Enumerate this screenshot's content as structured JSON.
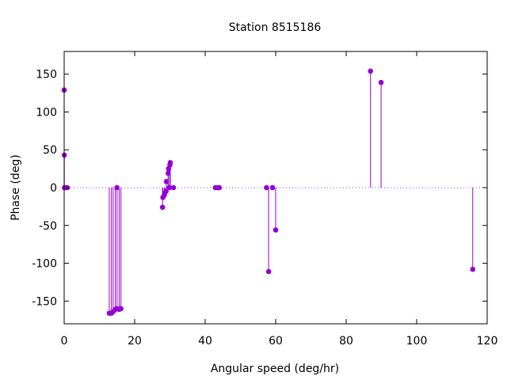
{
  "chart_data": {
    "type": "scatter",
    "style": "impulses-with-points",
    "title": "Station 8515186",
    "xlabel": "Angular speed (deg/hr)",
    "ylabel": "Phase (deg)",
    "xlim": [
      0,
      120
    ],
    "ylim": [
      -180,
      180
    ],
    "xticks": [
      0,
      20,
      40,
      60,
      80,
      100,
      120
    ],
    "yticks": [
      -150,
      -100,
      -50,
      0,
      50,
      100,
      150
    ],
    "grid": false,
    "zero_line": true,
    "series_color": "#9400d3",
    "zero_line_color": "#a040ff",
    "points": [
      {
        "x": 0.0,
        "y": 129
      },
      {
        "x": 0.04,
        "y": 43
      },
      {
        "x": 0.08,
        "y": 0
      },
      {
        "x": 0.5,
        "y": 0
      },
      {
        "x": 0.9,
        "y": 0
      },
      {
        "x": 12.8,
        "y": -166
      },
      {
        "x": 13.4,
        "y": -166
      },
      {
        "x": 13.9,
        "y": -164
      },
      {
        "x": 14.5,
        "y": -161
      },
      {
        "x": 14.96,
        "y": 0
      },
      {
        "x": 15.0,
        "y": -160
      },
      {
        "x": 15.6,
        "y": -161
      },
      {
        "x": 16.1,
        "y": -160
      },
      {
        "x": 27.9,
        "y": -26
      },
      {
        "x": 28.0,
        "y": -13
      },
      {
        "x": 28.4,
        "y": -10
      },
      {
        "x": 28.5,
        "y": -7
      },
      {
        "x": 28.9,
        "y": -5
      },
      {
        "x": 29.0,
        "y": 8
      },
      {
        "x": 29.5,
        "y": 19
      },
      {
        "x": 29.6,
        "y": 25
      },
      {
        "x": 29.8,
        "y": 0
      },
      {
        "x": 30.0,
        "y": 30
      },
      {
        "x": 30.1,
        "y": 33
      },
      {
        "x": 31.0,
        "y": 0
      },
      {
        "x": 42.9,
        "y": 0
      },
      {
        "x": 43.5,
        "y": 0
      },
      {
        "x": 44.0,
        "y": 0
      },
      {
        "x": 57.4,
        "y": 0
      },
      {
        "x": 58.0,
        "y": -111
      },
      {
        "x": 59.1,
        "y": 0
      },
      {
        "x": 60.0,
        "y": -56
      },
      {
        "x": 86.9,
        "y": 154
      },
      {
        "x": 89.9,
        "y": 139
      },
      {
        "x": 115.9,
        "y": -108
      }
    ]
  }
}
